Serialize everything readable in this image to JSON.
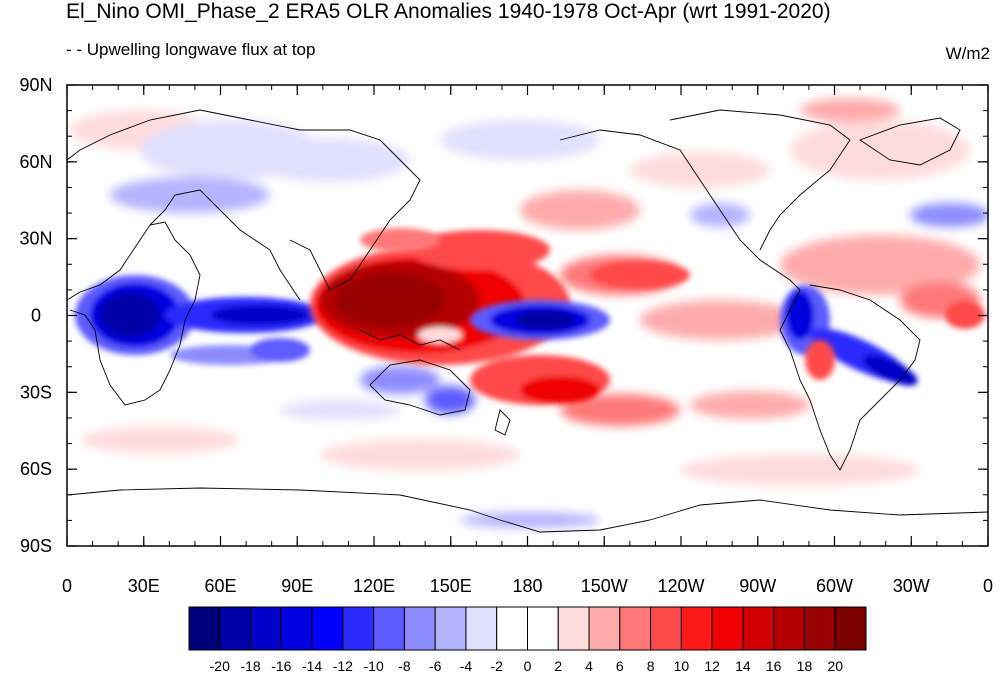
{
  "header": {
    "title": "El_Nino OMI_Phase_2 ERA5 OLR Anomalies 1940-1978 Oct-Apr (wrt 1991-2020)",
    "subtitle": "- - Upwelling longwave flux at top",
    "units": "W/m2"
  },
  "axes": {
    "lat_labels": [
      "90N",
      "60N",
      "30N",
      "0",
      "30S",
      "60S",
      "90S"
    ],
    "lon_labels": [
      "0",
      "30E",
      "60E",
      "90E",
      "120E",
      "150E",
      "180",
      "150W",
      "120W",
      "90W",
      "60W",
      "30W",
      "0"
    ]
  },
  "colorbar": {
    "labels": [
      "-20",
      "-18",
      "-16",
      "-14",
      "-12",
      "-10",
      "-8",
      "-6",
      "-4",
      "-2",
      "0",
      "2",
      "4",
      "6",
      "8",
      "10",
      "12",
      "14",
      "16",
      "18",
      "20"
    ],
    "colors": [
      "#00007a",
      "#0000a8",
      "#0000c8",
      "#0000e0",
      "#0000ff",
      "#2a2aff",
      "#5b5bff",
      "#8c8cff",
      "#b4b4ff",
      "#e0e0ff",
      "#ffffff",
      "#ffffff",
      "#ffdcdc",
      "#ffaaaa",
      "#ff7878",
      "#ff4a4a",
      "#ff1a1a",
      "#f00000",
      "#d20000",
      "#b40000",
      "#960000",
      "#7a0000"
    ]
  },
  "map_colors": {
    "ocean_bg": "#ffffff",
    "coastline": "#000000"
  }
}
